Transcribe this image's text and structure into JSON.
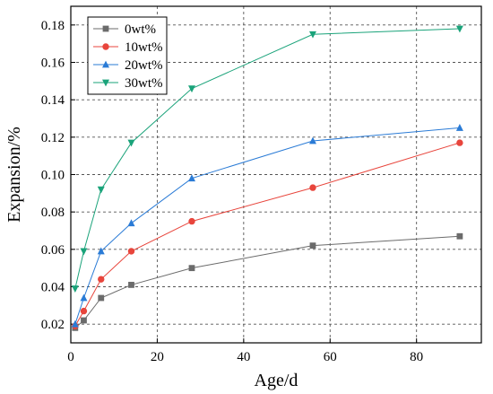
{
  "chart_data": {
    "type": "line",
    "xlabel": "Age/d",
    "ylabel": "Expansion/%",
    "xlim": [
      0,
      95
    ],
    "ylim": [
      0.01,
      0.19
    ],
    "x_ticks": [
      0,
      20,
      40,
      60,
      80
    ],
    "y_ticks": [
      0.02,
      0.04,
      0.06,
      0.08,
      0.1,
      0.12,
      0.14,
      0.16,
      0.18
    ],
    "y_tick_labels": [
      "0.02",
      "0.04",
      "0.06",
      "0.08",
      "0.10",
      "0.12",
      "0.14",
      "0.16",
      "0.18"
    ],
    "grid": true,
    "legend_position": "top-left",
    "series": [
      {
        "name": "0wt%",
        "color": "#6b6b6b",
        "marker": "square",
        "x": [
          1,
          3,
          7,
          14,
          28,
          56,
          90
        ],
        "y": [
          0.018,
          0.022,
          0.034,
          0.041,
          0.05,
          0.062,
          0.067
        ]
      },
      {
        "name": "10wt%",
        "color": "#e8453c",
        "marker": "circle",
        "x": [
          1,
          3,
          7,
          14,
          28,
          56,
          90
        ],
        "y": [
          0.019,
          0.027,
          0.044,
          0.059,
          0.075,
          0.093,
          0.117
        ]
      },
      {
        "name": "20wt%",
        "color": "#2a7bd6",
        "marker": "triangle-up",
        "x": [
          1,
          3,
          7,
          14,
          28,
          56,
          90
        ],
        "y": [
          0.02,
          0.034,
          0.059,
          0.074,
          0.098,
          0.118,
          0.125
        ]
      },
      {
        "name": "30wt%",
        "color": "#1aa37a",
        "marker": "triangle-down",
        "x": [
          1,
          3,
          7,
          14,
          28,
          56,
          90
        ],
        "y": [
          0.039,
          0.059,
          0.092,
          0.117,
          0.146,
          0.175,
          0.178
        ]
      }
    ]
  }
}
